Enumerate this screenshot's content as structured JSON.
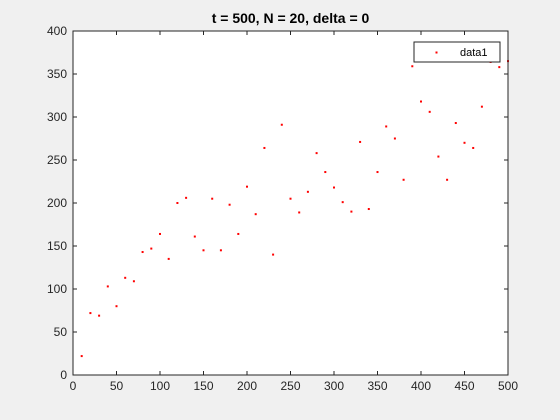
{
  "chart_data": {
    "type": "scatter",
    "title": "t = 500, N = 20, delta = 0",
    "xlabel": "",
    "ylabel": "",
    "xlim": [
      0,
      500
    ],
    "ylim": [
      0,
      400
    ],
    "x_ticks": [
      0,
      50,
      100,
      150,
      200,
      250,
      300,
      350,
      400,
      450,
      500
    ],
    "y_ticks": [
      0,
      50,
      100,
      150,
      200,
      250,
      300,
      350,
      400
    ],
    "grid": false,
    "legend_position": "top-right",
    "series": [
      {
        "name": "data1",
        "color": "#ff0000",
        "marker": "point",
        "x": [
          10,
          20,
          30,
          40,
          50,
          60,
          70,
          80,
          90,
          100,
          110,
          120,
          130,
          140,
          150,
          160,
          170,
          180,
          190,
          200,
          210,
          220,
          230,
          240,
          250,
          260,
          270,
          280,
          290,
          300,
          310,
          320,
          330,
          340,
          350,
          360,
          370,
          380,
          390,
          400,
          410,
          420,
          430,
          440,
          450,
          460,
          470,
          480,
          490,
          500
        ],
        "y": [
          22,
          72,
          69,
          103,
          80,
          113,
          109,
          143,
          147,
          164,
          135,
          200,
          206,
          161,
          145,
          205,
          145,
          198,
          164,
          219,
          187,
          264,
          140,
          291,
          205,
          189,
          213,
          258,
          236,
          218,
          201,
          190,
          271,
          193,
          236,
          289,
          275,
          227,
          359,
          318,
          306,
          254,
          227,
          293,
          270,
          264,
          312,
          364,
          358,
          365
        ]
      }
    ]
  }
}
